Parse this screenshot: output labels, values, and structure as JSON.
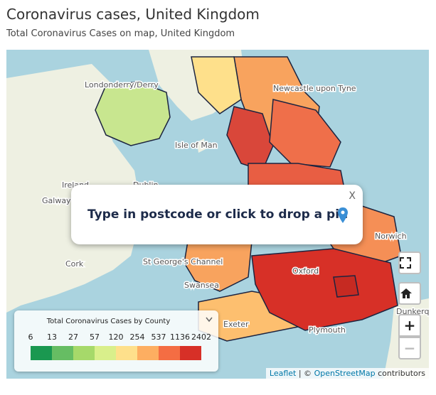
{
  "header": {
    "title": "Coronavirus cases, United Kingdom",
    "subtitle": "Total Coronavirus Cases on map, United Kingdom"
  },
  "map_labels": [
    "Londonderry/Derry",
    "Ireland",
    "Dublin",
    "Galway",
    "Cork",
    "Isle of Man",
    "Newcastle upon Tyne",
    "St George's Channel",
    "Swansea",
    "Oxford",
    "Norwich",
    "Exeter",
    "Plymouth",
    "Dunkerque"
  ],
  "popup": {
    "text": "Type in postcode or click to drop a pin",
    "close": "X"
  },
  "controls": {
    "zoom_in": "+",
    "zoom_out": "−"
  },
  "legend": {
    "title": "Total Coronavirus Cases by County",
    "breaks": [
      6,
      13,
      27,
      57,
      120,
      254,
      537,
      1136,
      2402
    ],
    "colors": [
      "#1a9850",
      "#66bd63",
      "#a6d96a",
      "#d9ef8b",
      "#fee08b",
      "#fdae61",
      "#f46d43",
      "#d73027"
    ]
  },
  "attribution": {
    "leaflet": "Leaflet",
    "sep": "| ©",
    "osm": "OpenStreetMap",
    "tail": "contributors"
  }
}
